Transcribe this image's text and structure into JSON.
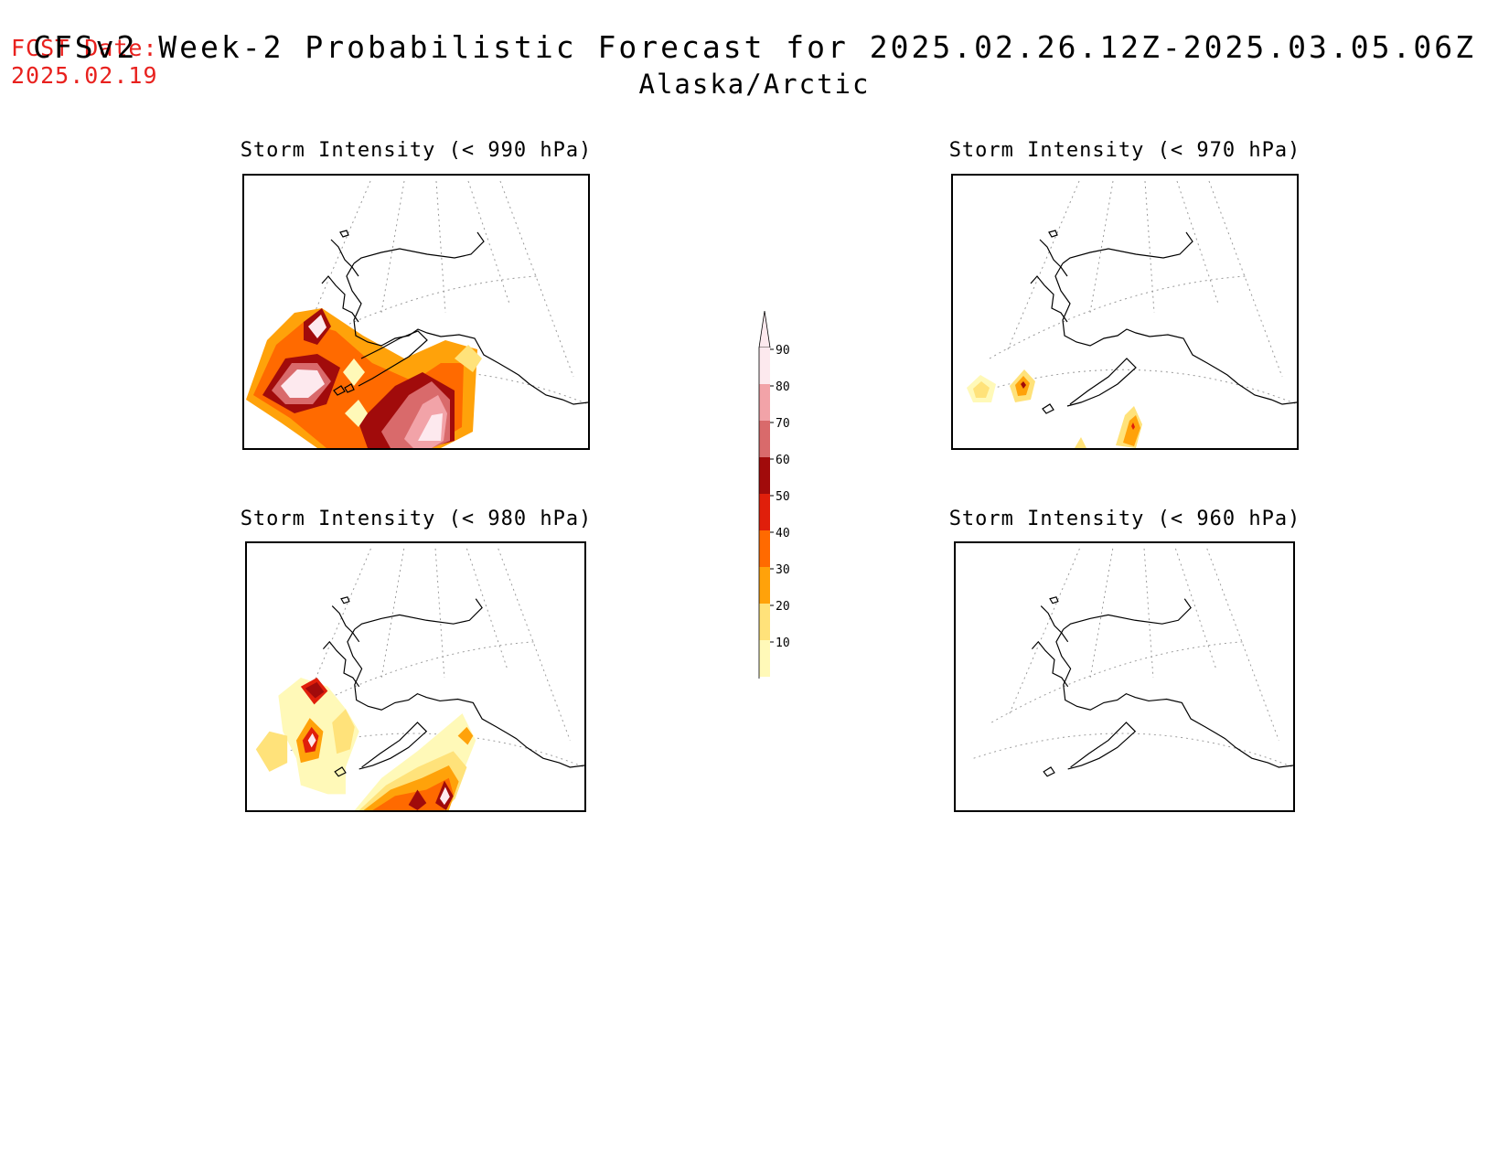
{
  "header": {
    "fcst_label": "FCST Date:",
    "fcst_date": "2025.02.19",
    "title": "CFSv2 Week-2 Probabilistic Forecast for 2025.02.26.12Z-2025.03.05.06Z",
    "subtitle": "Alaska/Arctic"
  },
  "panels": [
    {
      "id": "p990",
      "title": "Storm Intensity (< 990 hPa)"
    },
    {
      "id": "p970",
      "title": "Storm Intensity (< 970 hPa)"
    },
    {
      "id": "p980",
      "title": "Storm Intensity (< 980 hPa)"
    },
    {
      "id": "p960",
      "title": "Storm Intensity (< 960 hPa)"
    }
  ],
  "colorbar": {
    "labels": [
      "90",
      "80",
      "70",
      "60",
      "50",
      "40",
      "30",
      "20",
      "10"
    ],
    "colors": [
      "#fde9ee",
      "#f2a3a8",
      "#d96a6b",
      "#a10b0b",
      "#e01f0b",
      "#ff6a00",
      "#ffa20a",
      "#ffe27a",
      "#fff9b8"
    ]
  }
}
